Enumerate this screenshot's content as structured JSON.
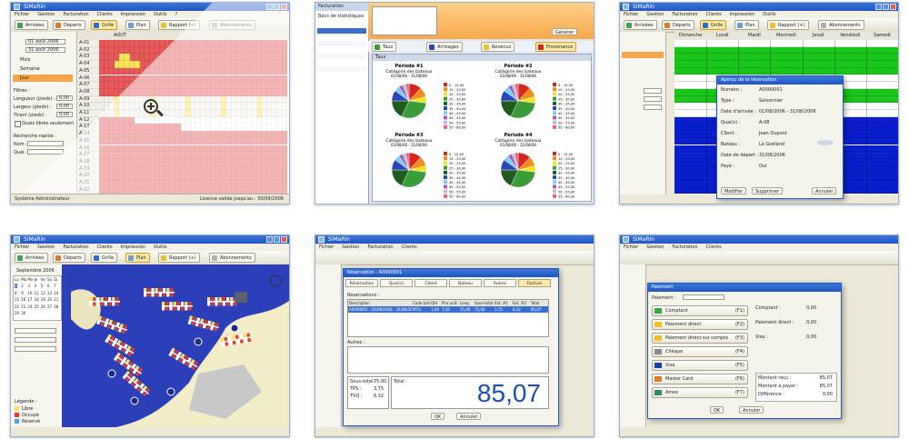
{
  "app": {
    "title": "SiMaRin"
  },
  "menu": [
    "Fichier",
    "Gestion",
    "Facturation",
    "Clients",
    "Impression",
    "Outils",
    "?"
  ],
  "toolbar": {
    "arrivees": "Arrivées",
    "departs": "Départs",
    "grille": "Grille",
    "plan": "Plan",
    "rapport": "Rapport (+)",
    "abonnements": "Abonnements"
  },
  "thumb1": {
    "date1": "01 août 2006",
    "date2": "31 août 2006",
    "side_items": [
      "Mois",
      "Semaine",
      "Jour"
    ],
    "filters_label": "Filtres :",
    "longueur_label": "Longueur (pieds) :",
    "largeur_label": "Largeur (pieds) :",
    "tirant_label": "Tirant (pieds) :",
    "default_val": "0,00",
    "quais_libres": "Quais libres seulement",
    "recherche_label": "Recherche rapide :",
    "nom_label": "Nom :",
    "quai_label": "Quai :",
    "month_label": "AOUT",
    "rows": [
      "A-01",
      "A-02",
      "A-03",
      "A-04",
      "A-05",
      "A-06",
      "A-07",
      "A-08",
      "A-09",
      "A-10",
      "A-11",
      "A-12",
      "A-13",
      "A-14",
      "A-15",
      "A-16",
      "A-17",
      "A-18",
      "A-19",
      "A-20",
      "A-21",
      "A-22"
    ],
    "status_left": "Système Administrateur",
    "status_right": "Licence valide jusqu'au : 30/09/2006",
    "magnify_icon": "magnify-plus-icon"
  },
  "thumb2": {
    "panel_title": "Facturation",
    "list_title": "Bacs de statistiques",
    "tabs": [
      "Taux",
      "Arrivages",
      "Revenus",
      "Provenance"
    ],
    "widget_header": "Taux",
    "charts": [
      {
        "title": "Période #1",
        "subtitle": "Catégorie des bateaux",
        "range": "01/08/06 - 31/08/06"
      },
      {
        "title": "Période #2",
        "subtitle": "Catégorie des bateaux",
        "range": "01/08/06 - 31/08/06"
      },
      {
        "title": "Période #3",
        "subtitle": "Catégorie des bateaux",
        "range": "01/08/06 - 31/08/06"
      },
      {
        "title": "Période #4",
        "subtitle": "Catégorie des bateaux",
        "range": "01/08/06 - 31/08/06"
      }
    ],
    "legend": [
      "0 - 15,00",
      "15 - 20,00",
      "20 - 25,00",
      "25 - 30,00",
      "30 - 35,00",
      "35 - 40,00",
      "40 - 45,00",
      "45 - 50,00",
      "50 - 55,00",
      "55 - 60,00"
    ],
    "legend_colors": [
      "#d9261c",
      "#f08c1e",
      "#f6e21e",
      "#3a9d3a",
      "#1f5a1f",
      "#2a46b8",
      "#7ad0f0",
      "#a060c0",
      "#c0c0c0",
      "#e06090"
    ],
    "slice_values": [
      12,
      9,
      6,
      30,
      18,
      10,
      5,
      4,
      3,
      3
    ],
    "button": "Générer"
  },
  "thumb3": {
    "days": [
      "Dimanche",
      "Lundi",
      "Mardi",
      "Mercredi",
      "Jeudi",
      "Vendredi",
      "Samedi"
    ],
    "dialog_title": "Aperçu de la réservation",
    "fields": [
      "Numéro :",
      "Type :",
      "Date d'arrivée :",
      "Quai(s) :",
      "Client :",
      "Bateau :",
      "Date de départ :",
      "Payé :"
    ],
    "values": [
      "A0000001",
      "Saisonnier",
      "01/08/2006 - 31/08/2006",
      "A-08",
      "Jean Dupont",
      "Le Goéland",
      "31/08/2006",
      "Oui"
    ],
    "buttons": [
      "Modifier",
      "Supprimer",
      "Annuler"
    ]
  },
  "thumb4": {
    "month_year": "Septembre 2006",
    "weekdays": [
      "Lu",
      "Ma",
      "Me",
      "Je",
      "Ve",
      "Sa",
      "Di"
    ],
    "legend_title": "Légende :",
    "legend_items": [
      "Libre",
      "Occupé",
      "Réservé"
    ],
    "legend_colors": [
      "#ffe45a",
      "#e33a2c",
      "#4da3e6"
    ]
  },
  "thumb5": {
    "dialog_title": "Réservation - A0000001",
    "tabs": [
      "Réservation",
      "Quai(s)",
      "Client",
      "Bateau",
      "Autres",
      "Facture"
    ],
    "section1": "Réservations :",
    "section2": "Autres :",
    "table_cols": [
      "Description",
      "Code tarif",
      "Qté",
      "Prix unit.",
      "Long.",
      "Sous-total",
      "Ext. #1",
      "Ext. #2",
      "Total"
    ],
    "row1": [
      "A0000001 - 01/08/2006 - 31/08/2006",
      "MTH",
      "1,00",
      "7,50",
      "25,00",
      "75,00",
      "3,75",
      "6,32",
      "85,07"
    ],
    "subtotal_label": "Sous-total :",
    "tax1_label": "TPS :",
    "tax2_label": "TVQ :",
    "total_label": "Total :",
    "subtotal": "75,00",
    "tax1": "3,75",
    "tax2": "6,32",
    "total": "85,07",
    "buttons": [
      "OK",
      "Annuler"
    ]
  },
  "thumb6": {
    "dialog_title": "Paiement",
    "methods_label": "Paiement :",
    "methods": [
      {
        "label": "Comptant",
        "key": "(F1)"
      },
      {
        "label": "Paiement direct",
        "key": "(F2)"
      },
      {
        "label": "Paiement direct sur compte",
        "key": "(F3)"
      },
      {
        "label": "Chèque",
        "key": "(F4)"
      },
      {
        "label": "Visa",
        "key": "(F5)"
      },
      {
        "label": "Master Card",
        "key": "(F6)"
      },
      {
        "label": "Amex",
        "key": "(F7)"
      }
    ],
    "right_labels": [
      "Comptant :",
      "Paiement direct :",
      "Visa :"
    ],
    "right_values": [
      "0,00",
      "0,00",
      "0,00"
    ],
    "totals_labels": [
      "Montant reçu :",
      "Montant à payer :",
      "Différence :"
    ],
    "totals_values": [
      "85,07",
      "85,07",
      "0,00"
    ],
    "buttons": [
      "OK",
      "Annuler"
    ]
  }
}
